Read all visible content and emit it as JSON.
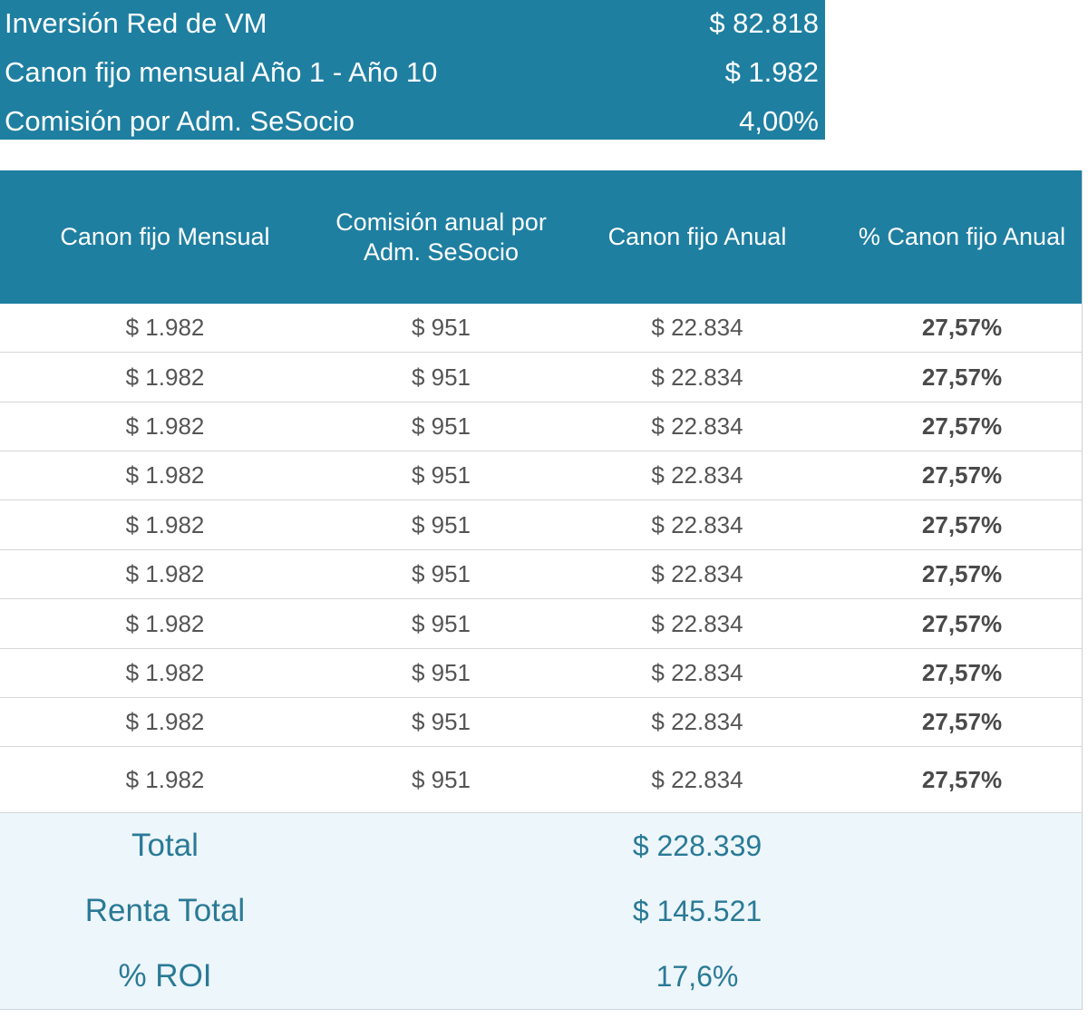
{
  "summary": {
    "rows": [
      {
        "label": "Inversión Red de VM",
        "value": "$ 82.818"
      },
      {
        "label": "Canon fijo mensual Año 1 - Año 10",
        "value": "$ 1.982"
      },
      {
        "label": "Comisión por Adm. SeSocio",
        "value": "4,00%"
      }
    ]
  },
  "table": {
    "headers": [
      "Canon fijo Mensual",
      "Comisión anual por Adm. SeSocio",
      "Canon fijo Anual",
      "% Canon fijo Anual"
    ],
    "rows": [
      [
        "$ 1.982",
        "$ 951",
        "$ 22.834",
        "27,57%"
      ],
      [
        "$ 1.982",
        "$ 951",
        "$ 22.834",
        "27,57%"
      ],
      [
        "$ 1.982",
        "$ 951",
        "$ 22.834",
        "27,57%"
      ],
      [
        "$ 1.982",
        "$ 951",
        "$ 22.834",
        "27,57%"
      ],
      [
        "$ 1.982",
        "$ 951",
        "$ 22.834",
        "27,57%"
      ],
      [
        "$ 1.982",
        "$ 951",
        "$ 22.834",
        "27,57%"
      ],
      [
        "$ 1.982",
        "$ 951",
        "$ 22.834",
        "27,57%"
      ],
      [
        "$ 1.982",
        "$ 951",
        "$ 22.834",
        "27,57%"
      ],
      [
        "$ 1.982",
        "$ 951",
        "$ 22.834",
        "27,57%"
      ],
      [
        "$ 1.982",
        "$ 951",
        "$ 22.834",
        "27,57%"
      ]
    ],
    "footer": [
      {
        "label": "Total",
        "value": "$ 228.339"
      },
      {
        "label": "Renta Total",
        "value": "$ 145.521"
      },
      {
        "label": "% ROI",
        "value": "17,6%"
      }
    ]
  }
}
